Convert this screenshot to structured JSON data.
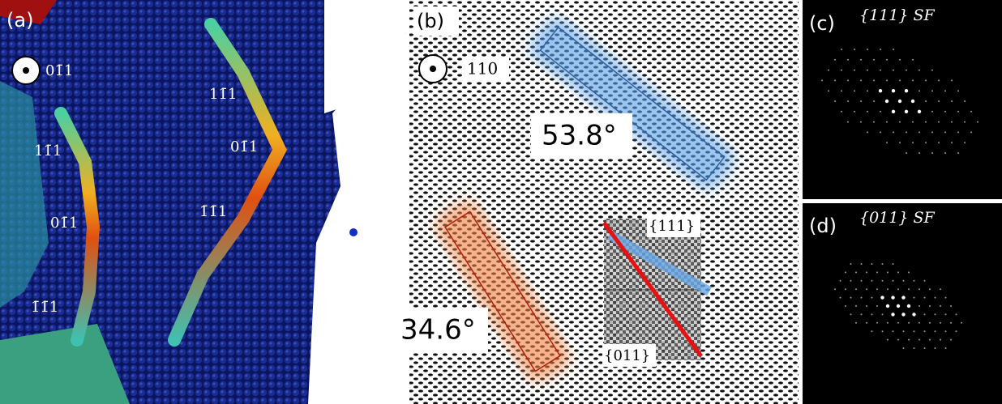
{
  "panels": [
    {
      "label": "(a)",
      "view_direction": "01̄1",
      "annotations": [
        "11̄1",
        "01̄1",
        "1̄1̄1",
        "11̄1",
        "01̄1",
        "1̄1̄1"
      ]
    },
    {
      "label": "(b)",
      "view_direction": "110",
      "angles": [
        "53.8°",
        "34.6°"
      ],
      "planes": [
        "{111}",
        "{011}"
      ]
    },
    {
      "label": "(c)",
      "title": "{111} SF"
    },
    {
      "label": "(d)",
      "title": "{011} SF"
    }
  ]
}
